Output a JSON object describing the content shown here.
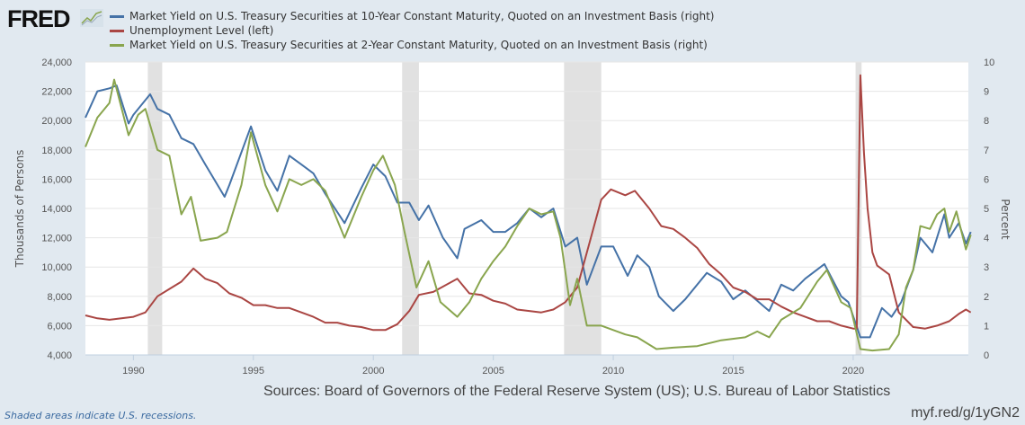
{
  "logo": {
    "text": "FRED"
  },
  "footer": {
    "recession_note": "Shaded areas indicate U.S. recessions.",
    "sources": "Sources: Board of Governors of the Federal Reserve System (US); U.S. Bureau of Labor Statistics",
    "url": "myf.red/g/1yGN2"
  },
  "chart_data": {
    "type": "line",
    "title": "",
    "xlabel": "",
    "ylabel_left": "Thousands of Persons",
    "ylabel_right": "Percent",
    "xlim": [
      1988.0,
      2024.8
    ],
    "ylim_left": [
      4000,
      24000
    ],
    "ylim_right": [
      0,
      10
    ],
    "x_ticks": [
      "1990",
      "1995",
      "2000",
      "2005",
      "2010",
      "2015",
      "2020"
    ],
    "y_ticks_left": [
      "4,000",
      "6,000",
      "8,000",
      "10,000",
      "12,000",
      "14,000",
      "16,000",
      "18,000",
      "20,000",
      "22,000",
      "24,000"
    ],
    "y_ticks_right": [
      "0",
      "1",
      "2",
      "3",
      "4",
      "5",
      "6",
      "7",
      "8",
      "9",
      "10"
    ],
    "grid": true,
    "legend_position": "top",
    "recessions": [
      [
        1990.6,
        1991.2
      ],
      [
        2001.2,
        2001.9
      ],
      [
        2007.95,
        2009.5
      ],
      [
        2020.1,
        2020.35
      ]
    ],
    "series": [
      {
        "name": "Market Yield on U.S. Treasury Securities at 10-Year Constant Maturity, Quoted on an Investment Basis (right)",
        "axis": "right",
        "color": "#4572a7",
        "points": [
          [
            1988.0,
            8.1
          ],
          [
            1988.5,
            9.0
          ],
          [
            1989.0,
            9.1
          ],
          [
            1989.3,
            9.2
          ],
          [
            1989.8,
            7.9
          ],
          [
            1990.0,
            8.2
          ],
          [
            1990.7,
            8.9
          ],
          [
            1991.0,
            8.4
          ],
          [
            1991.5,
            8.2
          ],
          [
            1992.0,
            7.4
          ],
          [
            1992.5,
            7.2
          ],
          [
            1993.0,
            6.5
          ],
          [
            1993.8,
            5.4
          ],
          [
            1994.0,
            5.8
          ],
          [
            1994.9,
            7.8
          ],
          [
            1995.5,
            6.3
          ],
          [
            1996.0,
            5.6
          ],
          [
            1996.5,
            6.8
          ],
          [
            1997.0,
            6.5
          ],
          [
            1997.5,
            6.2
          ],
          [
            1998.0,
            5.5
          ],
          [
            1998.8,
            4.5
          ],
          [
            1999.5,
            5.7
          ],
          [
            2000.0,
            6.5
          ],
          [
            2000.5,
            6.1
          ],
          [
            2001.0,
            5.2
          ],
          [
            2001.5,
            5.2
          ],
          [
            2001.9,
            4.6
          ],
          [
            2002.3,
            5.1
          ],
          [
            2002.9,
            4.0
          ],
          [
            2003.5,
            3.3
          ],
          [
            2003.8,
            4.3
          ],
          [
            2004.5,
            4.6
          ],
          [
            2005.0,
            4.2
          ],
          [
            2005.5,
            4.2
          ],
          [
            2006.0,
            4.5
          ],
          [
            2006.5,
            5.0
          ],
          [
            2007.0,
            4.7
          ],
          [
            2007.5,
            5.0
          ],
          [
            2008.0,
            3.7
          ],
          [
            2008.5,
            4.0
          ],
          [
            2008.9,
            2.4
          ],
          [
            2009.5,
            3.7
          ],
          [
            2010.0,
            3.7
          ],
          [
            2010.6,
            2.7
          ],
          [
            2011.0,
            3.4
          ],
          [
            2011.5,
            3.0
          ],
          [
            2011.9,
            2.0
          ],
          [
            2012.5,
            1.5
          ],
          [
            2013.0,
            1.9
          ],
          [
            2013.9,
            2.8
          ],
          [
            2014.5,
            2.5
          ],
          [
            2015.0,
            1.9
          ],
          [
            2015.5,
            2.2
          ],
          [
            2016.5,
            1.5
          ],
          [
            2017.0,
            2.4
          ],
          [
            2017.5,
            2.2
          ],
          [
            2018.0,
            2.6
          ],
          [
            2018.8,
            3.1
          ],
          [
            2019.5,
            2.0
          ],
          [
            2019.8,
            1.8
          ],
          [
            2020.3,
            0.6
          ],
          [
            2020.7,
            0.6
          ],
          [
            2021.2,
            1.6
          ],
          [
            2021.6,
            1.3
          ],
          [
            2022.0,
            1.8
          ],
          [
            2022.5,
            2.9
          ],
          [
            2022.8,
            4.0
          ],
          [
            2023.3,
            3.5
          ],
          [
            2023.8,
            4.8
          ],
          [
            2024.0,
            4.0
          ],
          [
            2024.4,
            4.5
          ],
          [
            2024.7,
            3.8
          ],
          [
            2024.9,
            4.2
          ]
        ]
      },
      {
        "name": "Unemployment Level (left)",
        "axis": "left",
        "color": "#aa4643",
        "points": [
          [
            1988.0,
            6700
          ],
          [
            1988.5,
            6500
          ],
          [
            1989.0,
            6400
          ],
          [
            1989.5,
            6500
          ],
          [
            1990.0,
            6600
          ],
          [
            1990.5,
            6900
          ],
          [
            1991.0,
            8000
          ],
          [
            1991.5,
            8500
          ],
          [
            1992.0,
            9000
          ],
          [
            1992.5,
            9900
          ],
          [
            1993.0,
            9200
          ],
          [
            1993.5,
            8900
          ],
          [
            1994.0,
            8200
          ],
          [
            1994.5,
            7900
          ],
          [
            1995.0,
            7400
          ],
          [
            1995.5,
            7400
          ],
          [
            1996.0,
            7200
          ],
          [
            1996.5,
            7200
          ],
          [
            1997.0,
            6900
          ],
          [
            1997.5,
            6600
          ],
          [
            1998.0,
            6200
          ],
          [
            1998.5,
            6200
          ],
          [
            1999.0,
            6000
          ],
          [
            1999.5,
            5900
          ],
          [
            2000.0,
            5700
          ],
          [
            2000.5,
            5700
          ],
          [
            2001.0,
            6100
          ],
          [
            2001.5,
            7000
          ],
          [
            2001.9,
            8100
          ],
          [
            2002.5,
            8300
          ],
          [
            2003.5,
            9200
          ],
          [
            2004.0,
            8200
          ],
          [
            2004.5,
            8100
          ],
          [
            2005.0,
            7700
          ],
          [
            2005.5,
            7500
          ],
          [
            2006.0,
            7100
          ],
          [
            2006.5,
            7000
          ],
          [
            2007.0,
            6900
          ],
          [
            2007.5,
            7100
          ],
          [
            2008.0,
            7600
          ],
          [
            2008.5,
            8600
          ],
          [
            2009.0,
            11600
          ],
          [
            2009.5,
            14600
          ],
          [
            2009.9,
            15300
          ],
          [
            2010.5,
            14900
          ],
          [
            2010.9,
            15200
          ],
          [
            2011.5,
            14000
          ],
          [
            2012.0,
            12800
          ],
          [
            2012.5,
            12600
          ],
          [
            2013.0,
            12000
          ],
          [
            2013.5,
            11300
          ],
          [
            2014.0,
            10200
          ],
          [
            2014.5,
            9500
          ],
          [
            2015.0,
            8600
          ],
          [
            2015.5,
            8300
          ],
          [
            2016.0,
            7800
          ],
          [
            2016.5,
            7800
          ],
          [
            2017.0,
            7300
          ],
          [
            2017.5,
            6900
          ],
          [
            2018.0,
            6600
          ],
          [
            2018.5,
            6300
          ],
          [
            2019.0,
            6300
          ],
          [
            2019.5,
            6000
          ],
          [
            2020.0,
            5800
          ],
          [
            2020.15,
            5800
          ],
          [
            2020.3,
            23100
          ],
          [
            2020.45,
            17800
          ],
          [
            2020.6,
            14000
          ],
          [
            2020.8,
            11000
          ],
          [
            2021.0,
            10100
          ],
          [
            2021.5,
            9500
          ],
          [
            2021.9,
            6900
          ],
          [
            2022.5,
            5900
          ],
          [
            2023.0,
            5800
          ],
          [
            2023.5,
            6000
          ],
          [
            2024.0,
            6300
          ],
          [
            2024.4,
            6800
          ],
          [
            2024.7,
            7100
          ],
          [
            2024.9,
            6900
          ]
        ]
      },
      {
        "name": "Market Yield on U.S. Treasury Securities at 2-Year Constant Maturity, Quoted on an Investment Basis (right)",
        "axis": "right",
        "color": "#89a54e",
        "points": [
          [
            1988.0,
            7.1
          ],
          [
            1988.5,
            8.1
          ],
          [
            1989.0,
            8.6
          ],
          [
            1989.2,
            9.4
          ],
          [
            1989.8,
            7.5
          ],
          [
            1990.2,
            8.2
          ],
          [
            1990.5,
            8.4
          ],
          [
            1991.0,
            7.0
          ],
          [
            1991.5,
            6.8
          ],
          [
            1992.0,
            4.8
          ],
          [
            1992.4,
            5.4
          ],
          [
            1992.8,
            3.9
          ],
          [
            1993.5,
            4.0
          ],
          [
            1993.9,
            4.2
          ],
          [
            1994.5,
            5.8
          ],
          [
            1994.9,
            7.6
          ],
          [
            1995.5,
            5.8
          ],
          [
            1996.0,
            4.9
          ],
          [
            1996.5,
            6.0
          ],
          [
            1997.0,
            5.8
          ],
          [
            1997.5,
            6.0
          ],
          [
            1998.0,
            5.6
          ],
          [
            1998.8,
            4.0
          ],
          [
            1999.5,
            5.4
          ],
          [
            2000.0,
            6.3
          ],
          [
            2000.4,
            6.8
          ],
          [
            2000.9,
            5.8
          ],
          [
            2001.3,
            4.2
          ],
          [
            2001.8,
            2.3
          ],
          [
            2002.3,
            3.2
          ],
          [
            2002.8,
            1.8
          ],
          [
            2003.5,
            1.3
          ],
          [
            2004.0,
            1.8
          ],
          [
            2004.5,
            2.6
          ],
          [
            2005.0,
            3.2
          ],
          [
            2005.5,
            3.7
          ],
          [
            2006.0,
            4.4
          ],
          [
            2006.5,
            5.0
          ],
          [
            2007.0,
            4.8
          ],
          [
            2007.5,
            4.9
          ],
          [
            2007.8,
            4.0
          ],
          [
            2008.2,
            1.7
          ],
          [
            2008.5,
            2.6
          ],
          [
            2008.9,
            1.0
          ],
          [
            2009.5,
            1.0
          ],
          [
            2010.5,
            0.7
          ],
          [
            2011.0,
            0.6
          ],
          [
            2011.8,
            0.2
          ],
          [
            2012.5,
            0.25
          ],
          [
            2013.5,
            0.3
          ],
          [
            2014.5,
            0.5
          ],
          [
            2015.5,
            0.6
          ],
          [
            2016.0,
            0.8
          ],
          [
            2016.5,
            0.6
          ],
          [
            2017.0,
            1.2
          ],
          [
            2017.8,
            1.6
          ],
          [
            2018.5,
            2.5
          ],
          [
            2018.9,
            2.9
          ],
          [
            2019.5,
            1.8
          ],
          [
            2019.9,
            1.6
          ],
          [
            2020.3,
            0.2
          ],
          [
            2020.8,
            0.15
          ],
          [
            2021.5,
            0.2
          ],
          [
            2021.9,
            0.7
          ],
          [
            2022.2,
            2.3
          ],
          [
            2022.5,
            2.9
          ],
          [
            2022.8,
            4.4
          ],
          [
            2023.2,
            4.3
          ],
          [
            2023.5,
            4.8
          ],
          [
            2023.8,
            5.0
          ],
          [
            2024.0,
            4.2
          ],
          [
            2024.3,
            4.9
          ],
          [
            2024.7,
            3.6
          ],
          [
            2024.9,
            4.1
          ]
        ]
      }
    ]
  }
}
